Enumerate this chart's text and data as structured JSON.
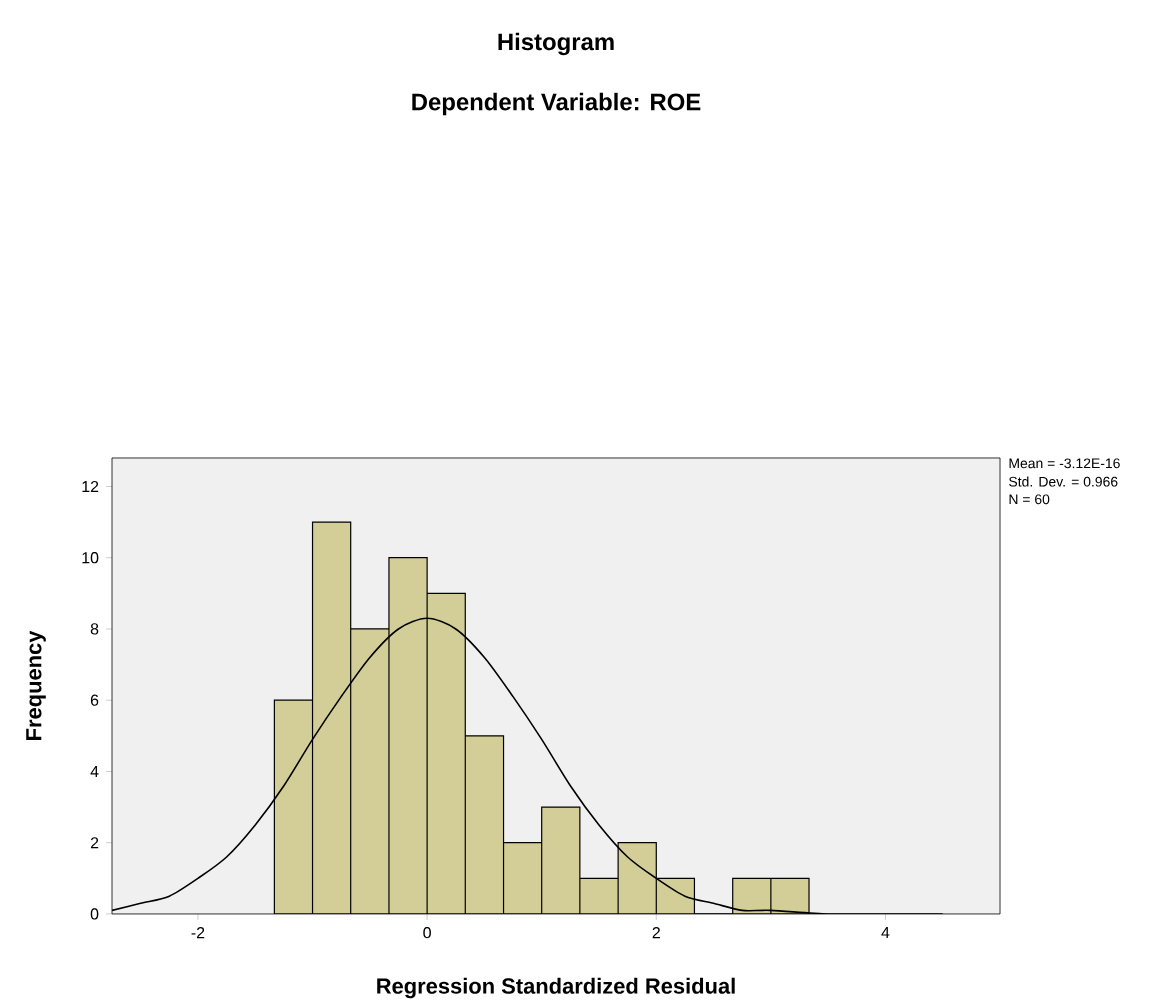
{
  "chart_data": {
    "type": "histogram",
    "title": "Histogram",
    "subtitle": "Dependent Variable: ROE",
    "xlabel": "Regression Standardized Residual",
    "ylabel": "Frequency",
    "annotations": [
      "Mean = -3.12E-16",
      "Std. Dev. = 0.966",
      "N = 60"
    ],
    "bins": [
      -1.333,
      -1.0,
      -0.667,
      -0.333,
      0.0,
      0.333,
      0.667,
      1.0,
      1.333,
      1.667,
      2.0,
      2.333,
      2.667,
      3.0,
      3.333
    ],
    "values": [
      6,
      11,
      8,
      10,
      9,
      5,
      2,
      3,
      1,
      2,
      1,
      0,
      1,
      1
    ],
    "color": "#d3ce97",
    "series": [
      {
        "type": "line",
        "color": "#000000",
        "x": [
          -2.75,
          -2.5,
          -2.25,
          -2,
          -1.75,
          -1.5,
          -1.25,
          -1,
          -0.75,
          -0.5,
          -0.25,
          0,
          0.25,
          0.5,
          0.75,
          1,
          1.25,
          1.5,
          1.75,
          2,
          2.25,
          2.5,
          2.75,
          3,
          3.5,
          4,
          4.5
        ],
        "values": [
          0.1,
          0.3,
          0.5,
          1.0,
          1.6,
          2.5,
          3.6,
          4.9,
          6.1,
          7.2,
          8.0,
          8.3,
          8.0,
          7.2,
          6.1,
          4.9,
          3.6,
          2.5,
          1.6,
          1.0,
          0.5,
          0.3,
          0.1,
          0.1,
          0.0,
          0.0,
          0.0
        ]
      }
    ],
    "xlim": [
      -2.75,
      5
    ],
    "ylim": [
      0,
      12.8
    ],
    "xticks": [
      -2,
      0,
      2,
      4
    ],
    "yticks": [
      0,
      2,
      4,
      6,
      8,
      10,
      12
    ],
    "grid": false
  }
}
